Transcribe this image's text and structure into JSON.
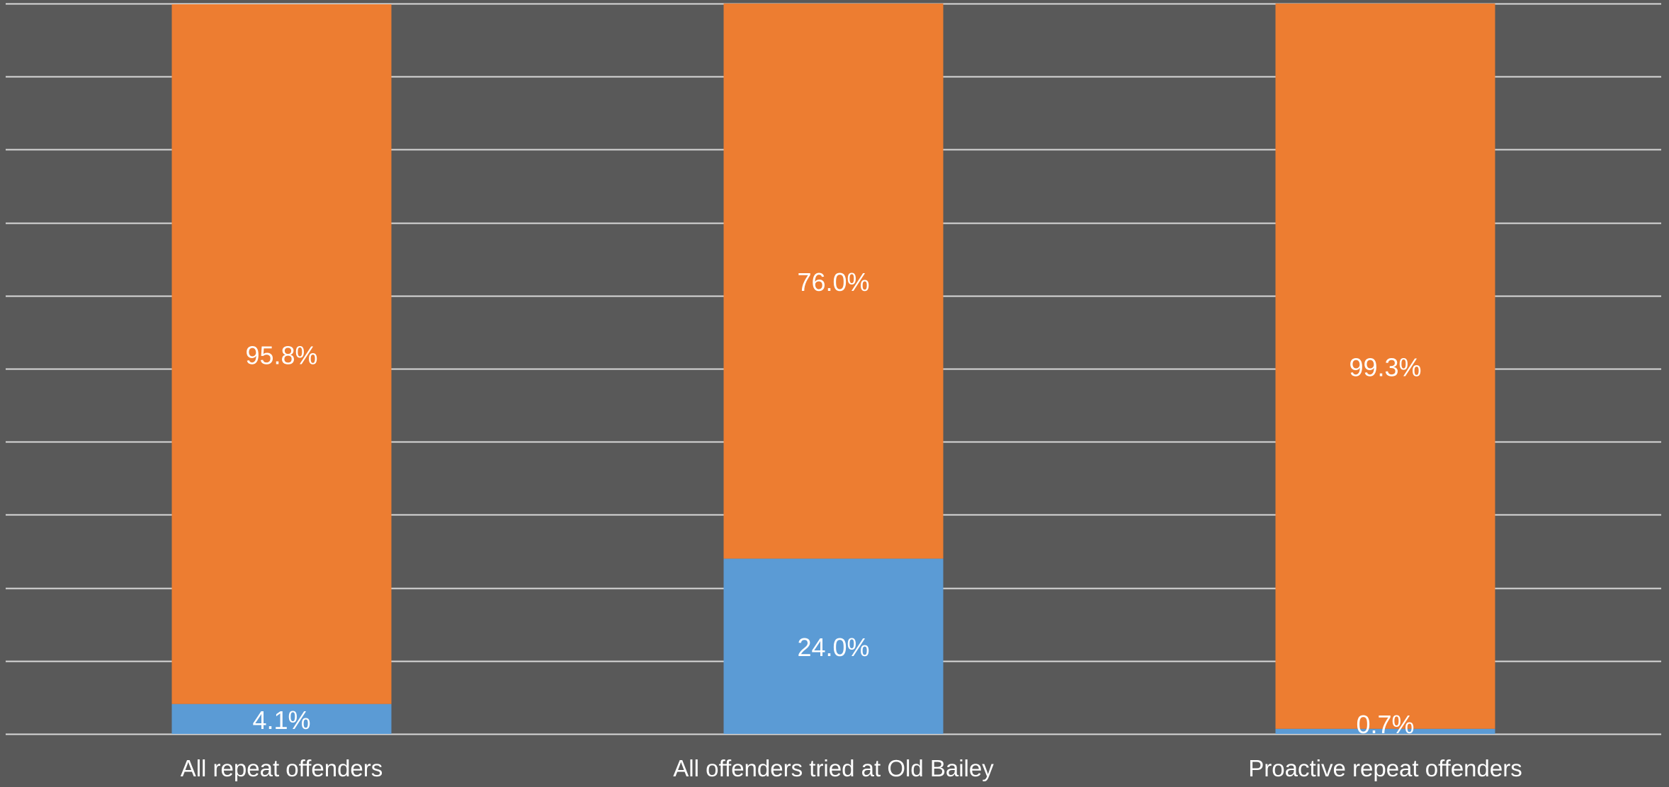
{
  "chart_data": {
    "type": "bar",
    "stacked": true,
    "percent_stacked": true,
    "categories": [
      "All repeat offenders",
      "All offenders tried at Old Bailey",
      "Proactive repeat offenders"
    ],
    "series": [
      {
        "color": "#5B9BD5",
        "values": [
          4.1,
          24.0,
          0.7
        ],
        "labels": [
          "4.1%",
          "24.0%",
          "0.7%"
        ]
      },
      {
        "color": "#ED7D31",
        "values": [
          95.8,
          76.0,
          99.3
        ],
        "labels": [
          "95.8%",
          "76.0%",
          "99.3%"
        ]
      }
    ],
    "ylim": [
      0,
      100
    ],
    "y_tick_step": 10,
    "grid": true,
    "background": "#595959",
    "gridline_color": "#D9D9D9",
    "label_color": "#FFFFFF"
  }
}
